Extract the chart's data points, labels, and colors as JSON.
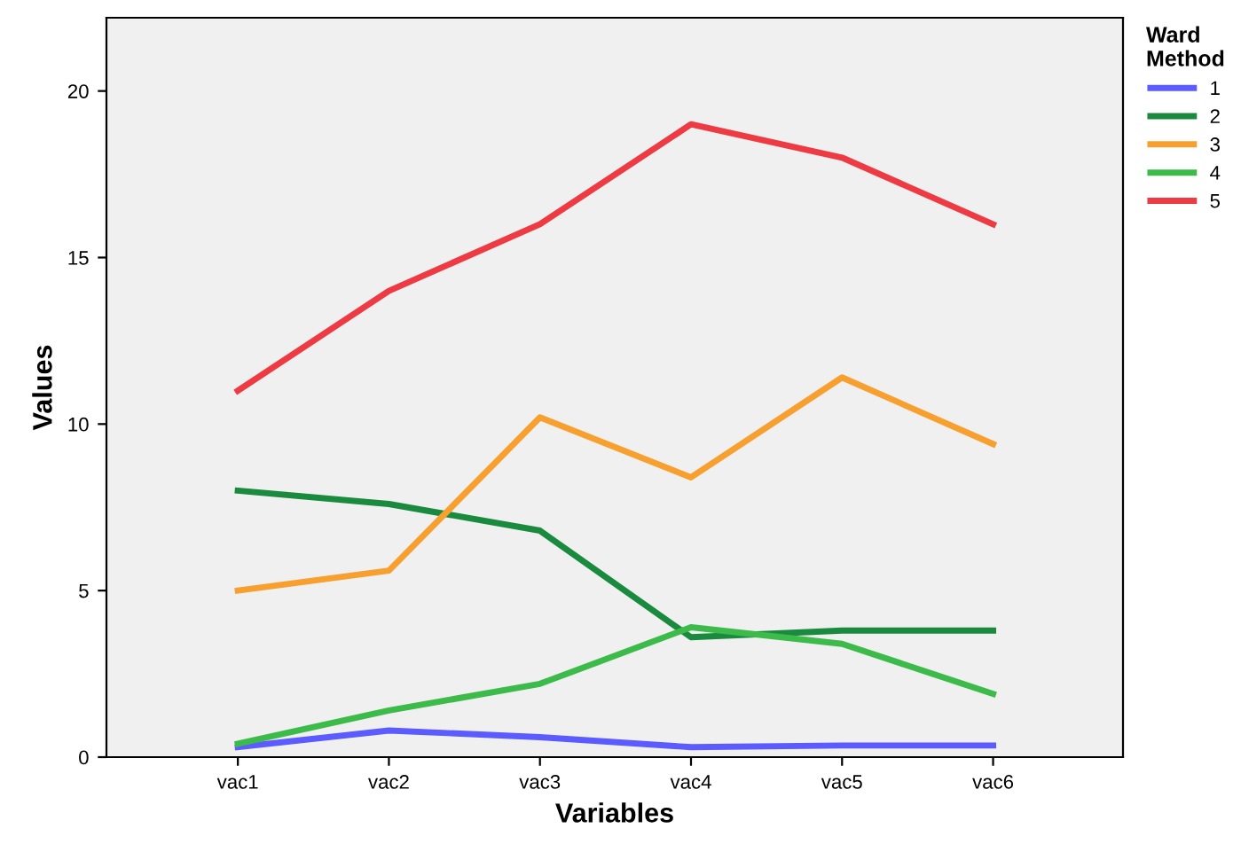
{
  "chart_data": {
    "type": "line",
    "xlabel": "Variables",
    "ylabel": "Values",
    "legend_title": "Ward Method",
    "legend": "right",
    "categories": [
      "vac1",
      "vac2",
      "vac3",
      "vac4",
      "vac5",
      "vac6"
    ],
    "ylim": [
      0,
      22.2
    ],
    "yticks": [
      0,
      5,
      10,
      15,
      20
    ],
    "grid": false,
    "marker": "none",
    "line_style": "solid",
    "series": [
      {
        "name": "1",
        "color": "#5b5bff",
        "values": [
          0.3,
          0.8,
          0.6,
          0.3,
          0.35,
          0.35
        ]
      },
      {
        "name": "2",
        "color": "#1a8a3e",
        "values": [
          8.0,
          7.6,
          6.8,
          3.6,
          3.8,
          3.8
        ]
      },
      {
        "name": "3",
        "color": "#f7a030",
        "values": [
          5.0,
          5.6,
          10.2,
          8.4,
          11.4,
          9.4
        ]
      },
      {
        "name": "4",
        "color": "#3dbb4a",
        "values": [
          0.4,
          1.4,
          2.2,
          3.9,
          3.4,
          1.9
        ]
      },
      {
        "name": "5",
        "color": "#ee3a43",
        "values": [
          11.0,
          14.0,
          16.0,
          19.0,
          18.0,
          16.0
        ]
      }
    ]
  }
}
